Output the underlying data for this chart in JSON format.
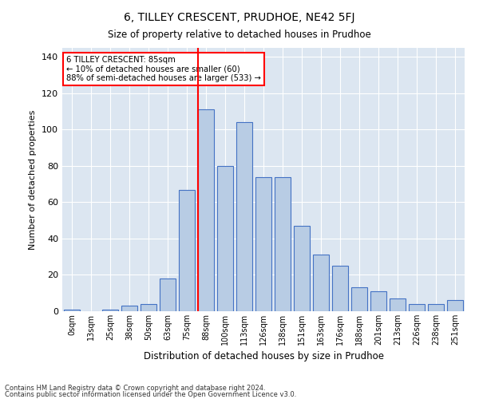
{
  "title": "6, TILLEY CRESCENT, PRUDHOE, NE42 5FJ",
  "subtitle": "Size of property relative to detached houses in Prudhoe",
  "xlabel": "Distribution of detached houses by size in Prudhoe",
  "ylabel": "Number of detached properties",
  "categories": [
    "0sqm",
    "13sqm",
    "25sqm",
    "38sqm",
    "50sqm",
    "63sqm",
    "75sqm",
    "88sqm",
    "100sqm",
    "113sqm",
    "126sqm",
    "138sqm",
    "151sqm",
    "163sqm",
    "176sqm",
    "188sqm",
    "201sqm",
    "213sqm",
    "226sqm",
    "238sqm",
    "251sqm"
  ],
  "values": [
    1,
    0,
    1,
    3,
    4,
    18,
    67,
    111,
    80,
    104,
    74,
    74,
    47,
    31,
    25,
    13,
    11,
    7,
    4,
    4,
    6
  ],
  "bar_color": "#b8cce4",
  "bar_edge_color": "#4472c4",
  "background_color": "#dce6f1",
  "grid_color": "#ffffff",
  "vline_x": 7,
  "vline_color": "red",
  "annotation_title": "6 TILLEY CRESCENT: 85sqm",
  "annotation_line1": "← 10% of detached houses are smaller (60)",
  "annotation_line2": "88% of semi-detached houses are larger (533) →",
  "annotation_box_color": "white",
  "annotation_border_color": "red",
  "footer1": "Contains HM Land Registry data © Crown copyright and database right 2024.",
  "footer2": "Contains public sector information licensed under the Open Government Licence v3.0.",
  "ylim": [
    0,
    145
  ],
  "yticks": [
    0,
    20,
    40,
    60,
    80,
    100,
    120,
    140
  ]
}
